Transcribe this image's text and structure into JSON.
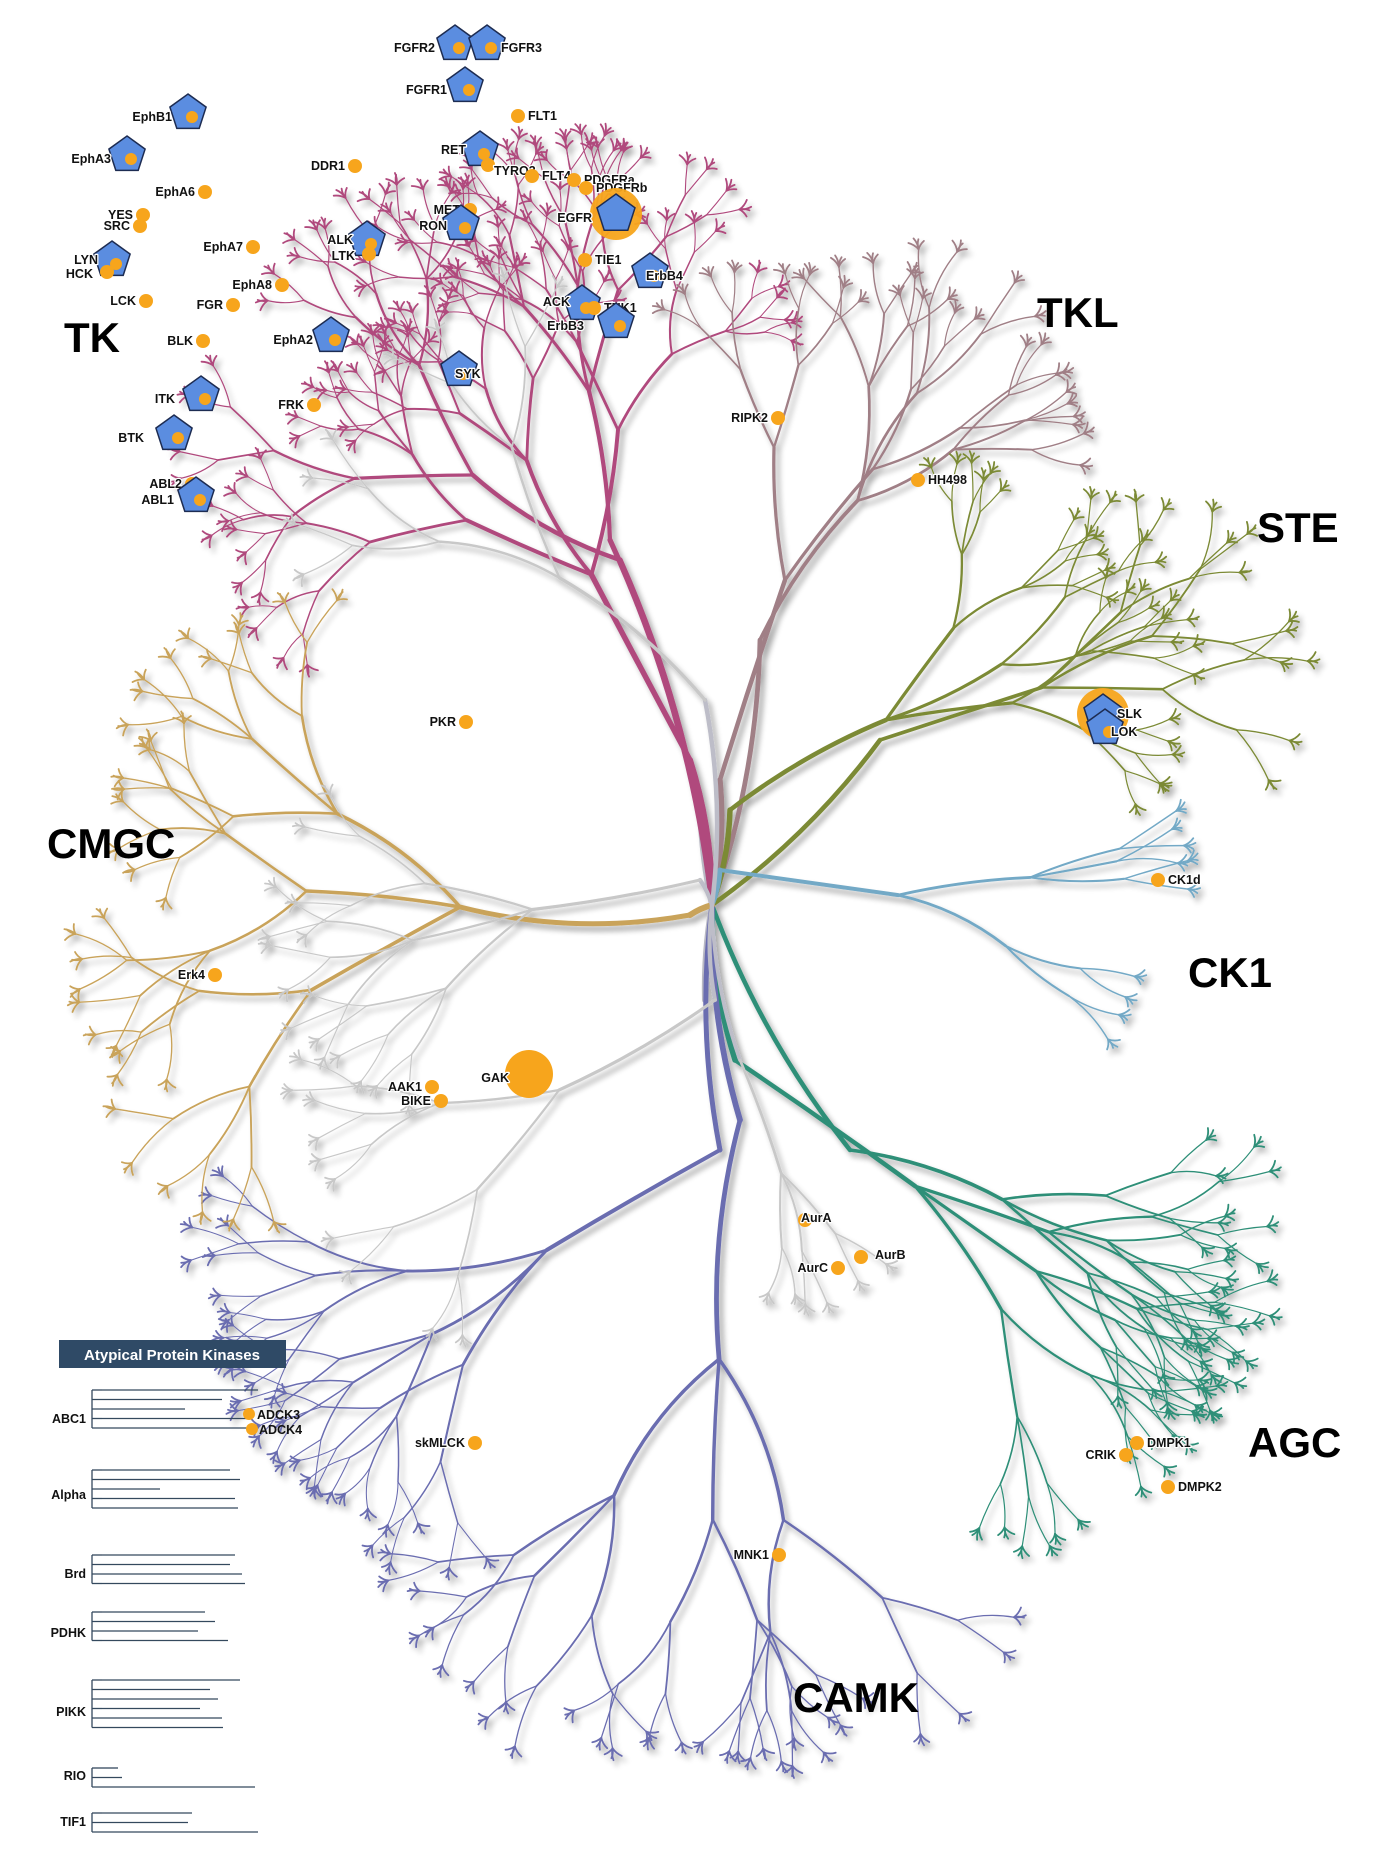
{
  "colors": {
    "TK": "#b04a7d",
    "TKL": "#a07f86",
    "STE": "#7b8a36",
    "CK1": "#73a9c6",
    "AGC": "#2f8f78",
    "CAMK": "#6b6db0",
    "CMGC": "#c9a35a",
    "Other": "#c8c8c8",
    "label": "#3a6f92",
    "marker": "#f7a51c",
    "pentagon": "#5b8de0",
    "atypical_header": "#2f4a66",
    "atypical_line": "#34495e"
  },
  "groups": [
    {
      "id": "TK",
      "label": "TK"
    },
    {
      "id": "TKL",
      "label": "TKL"
    },
    {
      "id": "STE",
      "label": "STE"
    },
    {
      "id": "CK1",
      "label": "CK1"
    },
    {
      "id": "AGC",
      "label": "AGC"
    },
    {
      "id": "CAMK",
      "label": "CAMK"
    },
    {
      "id": "CMGC",
      "label": "CMGC"
    }
  ],
  "kinases": [
    {
      "name": "FGFR2",
      "group": "TK",
      "marker": "pentagon"
    },
    {
      "name": "FGFR3",
      "group": "TK",
      "marker": "pentagon"
    },
    {
      "name": "FGFR1",
      "group": "TK",
      "marker": "pentagon"
    },
    {
      "name": "FLT1",
      "group": "TK",
      "marker": "dot"
    },
    {
      "name": "EphB1",
      "group": "TK",
      "marker": "pentagon"
    },
    {
      "name": "EphA3",
      "group": "TK",
      "marker": "pentagon"
    },
    {
      "name": "RET",
      "group": "TK",
      "marker": "pentagon"
    },
    {
      "name": "TYRO3",
      "group": "TK",
      "marker": "dot"
    },
    {
      "name": "FLT4",
      "group": "TK",
      "marker": "dot"
    },
    {
      "name": "DDR1",
      "group": "TK",
      "marker": "dot"
    },
    {
      "name": "PDGFRa",
      "group": "TK",
      "marker": "dot"
    },
    {
      "name": "PDGFRb",
      "group": "TK",
      "marker": "dot"
    },
    {
      "name": "EphA6",
      "group": "TK",
      "marker": "dot"
    },
    {
      "name": "MET",
      "group": "TK",
      "marker": "dot"
    },
    {
      "name": "RON",
      "group": "TK",
      "marker": "pentagon"
    },
    {
      "name": "EGFR",
      "group": "TK",
      "marker": "pentagon-ring"
    },
    {
      "name": "YES",
      "group": "TK",
      "marker": "dot"
    },
    {
      "name": "SRC",
      "group": "TK",
      "marker": "dot"
    },
    {
      "name": "EphA7",
      "group": "TK",
      "marker": "dot"
    },
    {
      "name": "ALK",
      "group": "TK",
      "marker": "pentagon"
    },
    {
      "name": "LTK",
      "group": "TK",
      "marker": "dot"
    },
    {
      "name": "TIE1",
      "group": "TK",
      "marker": "dot"
    },
    {
      "name": "LYN",
      "group": "TK",
      "marker": "pentagon"
    },
    {
      "name": "HCK",
      "group": "TK",
      "marker": "dot"
    },
    {
      "name": "ErbB4",
      "group": "TK",
      "marker": "pentagon"
    },
    {
      "name": "EphA8",
      "group": "TK",
      "marker": "dot"
    },
    {
      "name": "LCK",
      "group": "TK",
      "marker": "dot"
    },
    {
      "name": "FGR",
      "group": "TK",
      "marker": "dot"
    },
    {
      "name": "ACK",
      "group": "TK",
      "marker": "pentagon"
    },
    {
      "name": "TNK1",
      "group": "TK",
      "marker": "dot"
    },
    {
      "name": "ErbB3",
      "group": "TK",
      "marker": "pentagon"
    },
    {
      "name": "EphA2",
      "group": "TK",
      "marker": "pentagon"
    },
    {
      "name": "BLK",
      "group": "TK",
      "marker": "dot"
    },
    {
      "name": "SYK",
      "group": "TK",
      "marker": "pentagon"
    },
    {
      "name": "ITK",
      "group": "TK",
      "marker": "pentagon"
    },
    {
      "name": "FRK",
      "group": "TK",
      "marker": "dot"
    },
    {
      "name": "BTK",
      "group": "TK",
      "marker": "pentagon"
    },
    {
      "name": "ABL2",
      "group": "TK",
      "marker": "dot"
    },
    {
      "name": "ABL1",
      "group": "TK",
      "marker": "pentagon"
    },
    {
      "name": "RIPK2",
      "group": "TKL",
      "marker": "dot"
    },
    {
      "name": "HH498",
      "group": "TKL",
      "marker": "dot"
    },
    {
      "name": "SLK",
      "group": "STE",
      "marker": "pentagon-ring"
    },
    {
      "name": "LOK",
      "group": "STE",
      "marker": "pentagon"
    },
    {
      "name": "CK1d",
      "group": "CK1",
      "marker": "dot"
    },
    {
      "name": "PKR",
      "group": "Other",
      "marker": "dot"
    },
    {
      "name": "Erk4",
      "group": "CMGC",
      "marker": "dot"
    },
    {
      "name": "GAK",
      "group": "Other",
      "marker": "large-dot"
    },
    {
      "name": "AAK1",
      "group": "Other",
      "marker": "dot"
    },
    {
      "name": "BIKE",
      "group": "Other",
      "marker": "dot"
    },
    {
      "name": "AurA",
      "group": "Other",
      "marker": "dot"
    },
    {
      "name": "AurB",
      "group": "Other",
      "marker": "dot"
    },
    {
      "name": "AurC",
      "group": "Other",
      "marker": "dot"
    },
    {
      "name": "skMLCK",
      "group": "CAMK",
      "marker": "dot"
    },
    {
      "name": "MNK1",
      "group": "CAMK",
      "marker": "dot"
    },
    {
      "name": "CRIK",
      "group": "AGC",
      "marker": "dot"
    },
    {
      "name": "DMPK1",
      "group": "AGC",
      "marker": "dot"
    },
    {
      "name": "DMPK2",
      "group": "AGC",
      "marker": "dot"
    }
  ],
  "atypical": {
    "title": "Atypical Protein Kinases",
    "families": [
      {
        "label": "ABC1",
        "hits": [
          "ADCK3",
          "ADCK4"
        ]
      },
      {
        "label": "Alpha",
        "hits": []
      },
      {
        "label": "Brd",
        "hits": []
      },
      {
        "label": "PDHK",
        "hits": []
      },
      {
        "label": "PIKK",
        "hits": []
      },
      {
        "label": "RIO",
        "hits": []
      },
      {
        "label": "TIF1",
        "hits": []
      }
    ]
  }
}
